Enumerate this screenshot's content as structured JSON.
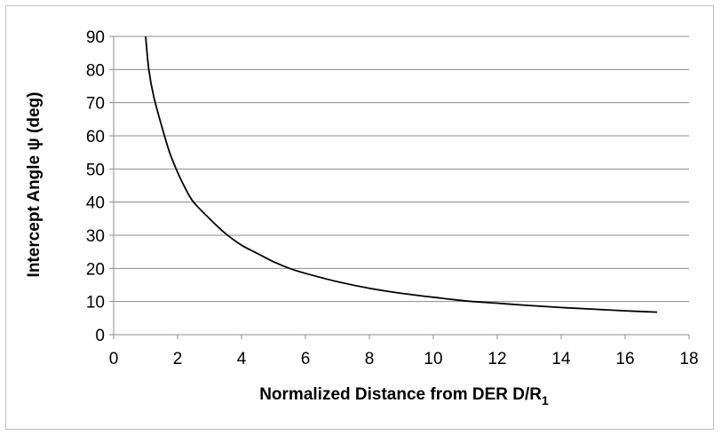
{
  "chart_data": {
    "type": "line",
    "title": "",
    "xlabel": "Normalized Distance from DER  D/R",
    "xlabel_subscript": "1",
    "ylabel": "Intercept Angle ψ (deg)",
    "xlim": [
      0,
      18
    ],
    "ylim": [
      0,
      90
    ],
    "x_ticks": [
      0,
      2,
      4,
      6,
      8,
      10,
      12,
      14,
      16,
      18
    ],
    "y_ticks": [
      0,
      10,
      20,
      30,
      40,
      50,
      60,
      70,
      80,
      90
    ],
    "grid": "horizontal",
    "legend": "none",
    "line_color": "#000000",
    "series": [
      {
        "x": [
          1.0,
          1.1,
          1.25,
          1.5,
          1.75,
          2.0,
          2.25,
          2.5,
          3.0,
          3.5,
          4.0,
          4.5,
          5.0,
          5.5,
          6.0,
          7.0,
          8.0,
          9.0,
          10.0,
          11.0,
          12.0,
          13.0,
          14.0,
          15.0,
          16.0,
          17.0
        ],
        "y": [
          90,
          80,
          72,
          63,
          55,
          49,
          44,
          40,
          35,
          30.5,
          27,
          24.5,
          22,
          20,
          18.5,
          16,
          14,
          12.5,
          11.3,
          10.2,
          9.5,
          8.8,
          8.2,
          7.7,
          7.2,
          6.8
        ]
      }
    ]
  }
}
